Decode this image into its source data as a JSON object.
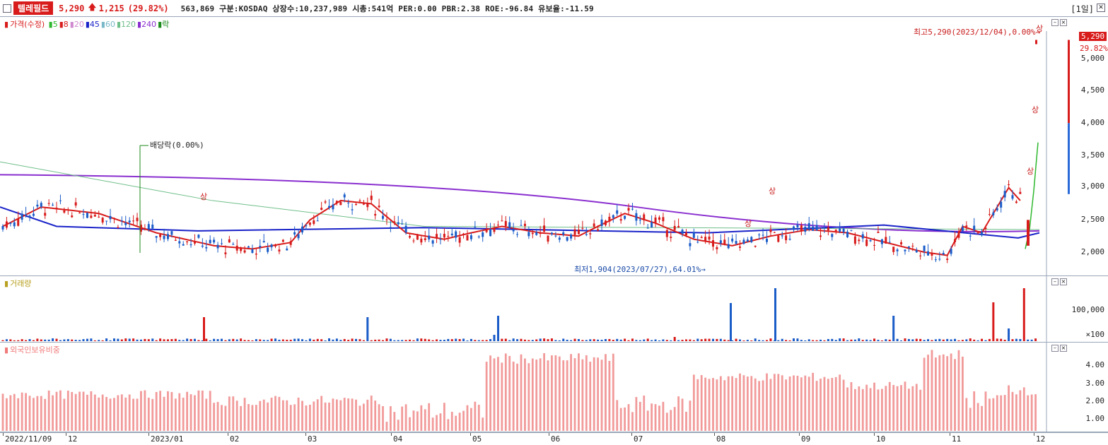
{
  "header": {
    "stock_name": "텔레필드",
    "price": "5,290",
    "change_arrow": "🡅",
    "change": "1,215",
    "change_pct": "(29.82%)",
    "stats": "563,869  구분:KOSDAQ  상장수:10,237,989  시총:541억  PER:0.00  PBR:2.38  ROE:-96.84  유보율:-11.59",
    "period": "[1일]",
    "close_glyph": "✕"
  },
  "price_pane": {
    "legend_price": "가격(수정)",
    "legend_items": [
      {
        "label": "5",
        "color": "#2eb82e"
      },
      {
        "label": "8",
        "color": "#d81b1b"
      },
      {
        "label": "20",
        "color": "#d089d0"
      },
      {
        "label": "45",
        "color": "#1a23c8"
      },
      {
        "label": "60",
        "color": "#79b8c8"
      },
      {
        "label": "120",
        "color": "#6fbf8a"
      },
      {
        "label": "240",
        "color": "#8a2fcf"
      },
      {
        "label": "락",
        "color": "#1a8a1a"
      }
    ],
    "y_ticks": [
      "5,000",
      "4,500",
      "4,000",
      "3,500",
      "3,000",
      "2,500",
      "2,000"
    ],
    "current_price_tag": "5,290",
    "current_pct": "29.82%",
    "high_annotation": "최고5,290(2023/12/04),0.00%→",
    "low_annotation": "최저1,904(2023/07/27),64.01%→",
    "dividend_annotation": "배당락(0.00%)",
    "limit_up_label": "상"
  },
  "volume_pane": {
    "legend": "거래량",
    "y_ticks": [
      "100,000",
      "×100"
    ]
  },
  "foreign_pane": {
    "legend": "외국인보유비중",
    "y_ticks": [
      "4.00",
      "3.00",
      "2.00",
      "1.00"
    ]
  },
  "x_axis": {
    "labels": [
      "2022/11/09",
      "12",
      "2023/01",
      "02",
      "03",
      "04",
      "05",
      "06",
      "07",
      "08",
      "09",
      "10",
      "11",
      "12"
    ]
  },
  "chart_data": {
    "type": "candlestick",
    "price_range": [
      1800,
      5400
    ],
    "volume_peak_note": "largest bars around late August",
    "foreign_ratio_range": [
      0,
      4.7
    ],
    "series": [
      {
        "name": "가격(수정)"
      },
      {
        "name": "거래량"
      },
      {
        "name": "외국인보유비중"
      }
    ]
  }
}
